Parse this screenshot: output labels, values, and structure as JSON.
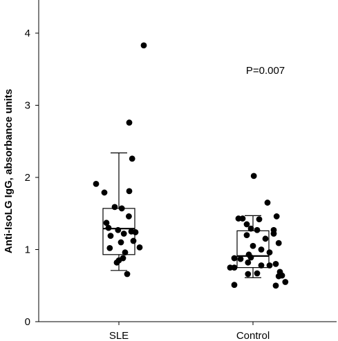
{
  "chart_data": {
    "type": "box",
    "title": "",
    "xlabel": "",
    "ylabel": "Anti-IsoLG IgG, absorbance units",
    "ylim": [
      0,
      4.4
    ],
    "yticks": [
      "0",
      "1",
      "2",
      "3",
      "4"
    ],
    "grid": false,
    "annotation": "P=0.007",
    "colors": {
      "points": "#000000",
      "box": "#000000",
      "background": "#ffffff"
    },
    "groups": [
      {
        "name": "SLE",
        "box": {
          "whisker_low": 0.71,
          "q1": 0.93,
          "median": 1.29,
          "q3": 1.57,
          "whisker_high": 2.34
        },
        "points": [
          {
            "x": -0.55,
            "y": 1.91
          },
          {
            "x": -0.35,
            "y": 1.79
          },
          {
            "x": -0.3,
            "y": 1.37
          },
          {
            "x": -0.25,
            "y": 1.3
          },
          {
            "x": -0.2,
            "y": 1.19
          },
          {
            "x": -0.22,
            "y": 1.02
          },
          {
            "x": 0.0,
            "y": 0.85
          },
          {
            "x": -0.05,
            "y": 0.82
          },
          {
            "x": 0.1,
            "y": 0.88
          },
          {
            "x": 0.15,
            "y": 0.96
          },
          {
            "x": 0.05,
            "y": 1.1
          },
          {
            "x": -0.02,
            "y": 1.27
          },
          {
            "x": 0.12,
            "y": 1.22
          },
          {
            "x": 0.07,
            "y": 1.57
          },
          {
            "x": -0.1,
            "y": 1.59
          },
          {
            "x": 0.24,
            "y": 1.46
          },
          {
            "x": 0.2,
            "y": 0.66
          },
          {
            "x": 0.3,
            "y": 1.25
          },
          {
            "x": 0.4,
            "y": 1.24
          },
          {
            "x": 0.35,
            "y": 1.12
          },
          {
            "x": 0.5,
            "y": 1.03
          },
          {
            "x": 0.25,
            "y": 1.81
          },
          {
            "x": 0.32,
            "y": 2.26
          },
          {
            "x": 0.25,
            "y": 2.76
          },
          {
            "x": 0.6,
            "y": 3.83
          }
        ]
      },
      {
        "name": "Control",
        "box": {
          "whisker_low": 0.61,
          "q1": 0.75,
          "median": 0.91,
          "q3": 1.26,
          "whisker_high": 1.47
        },
        "points": [
          {
            "x": -0.55,
            "y": 0.75
          },
          {
            "x": -0.45,
            "y": 0.75
          },
          {
            "x": -0.45,
            "y": 0.88
          },
          {
            "x": -0.45,
            "y": 0.51
          },
          {
            "x": -0.3,
            "y": 0.87
          },
          {
            "x": -0.35,
            "y": 1.43
          },
          {
            "x": -0.25,
            "y": 1.43
          },
          {
            "x": -0.15,
            "y": 1.35
          },
          {
            "x": -0.05,
            "y": 1.29
          },
          {
            "x": -0.15,
            "y": 1.2
          },
          {
            "x": -0.1,
            "y": 0.93
          },
          {
            "x": -0.05,
            "y": 0.89
          },
          {
            "x": -0.12,
            "y": 0.82
          },
          {
            "x": -0.12,
            "y": 0.66
          },
          {
            "x": 0.0,
            "y": 1.05
          },
          {
            "x": 0.02,
            "y": 2.02
          },
          {
            "x": 0.1,
            "y": 1.27
          },
          {
            "x": 0.15,
            "y": 1.42
          },
          {
            "x": 0.2,
            "y": 0.78
          },
          {
            "x": 0.1,
            "y": 0.67
          },
          {
            "x": 0.2,
            "y": 1.0
          },
          {
            "x": 0.3,
            "y": 1.15
          },
          {
            "x": 0.35,
            "y": 1.65
          },
          {
            "x": 0.4,
            "y": 0.78
          },
          {
            "x": 0.4,
            "y": 0.96
          },
          {
            "x": 0.5,
            "y": 1.27
          },
          {
            "x": 0.5,
            "y": 1.22
          },
          {
            "x": 0.55,
            "y": 0.8
          },
          {
            "x": 0.55,
            "y": 0.5
          },
          {
            "x": 0.62,
            "y": 1.09
          },
          {
            "x": 0.57,
            "y": 1.46
          },
          {
            "x": 0.65,
            "y": 0.69
          },
          {
            "x": 0.7,
            "y": 0.64
          },
          {
            "x": 0.78,
            "y": 0.55
          },
          {
            "x": 0.62,
            "y": 0.63
          }
        ]
      }
    ]
  }
}
